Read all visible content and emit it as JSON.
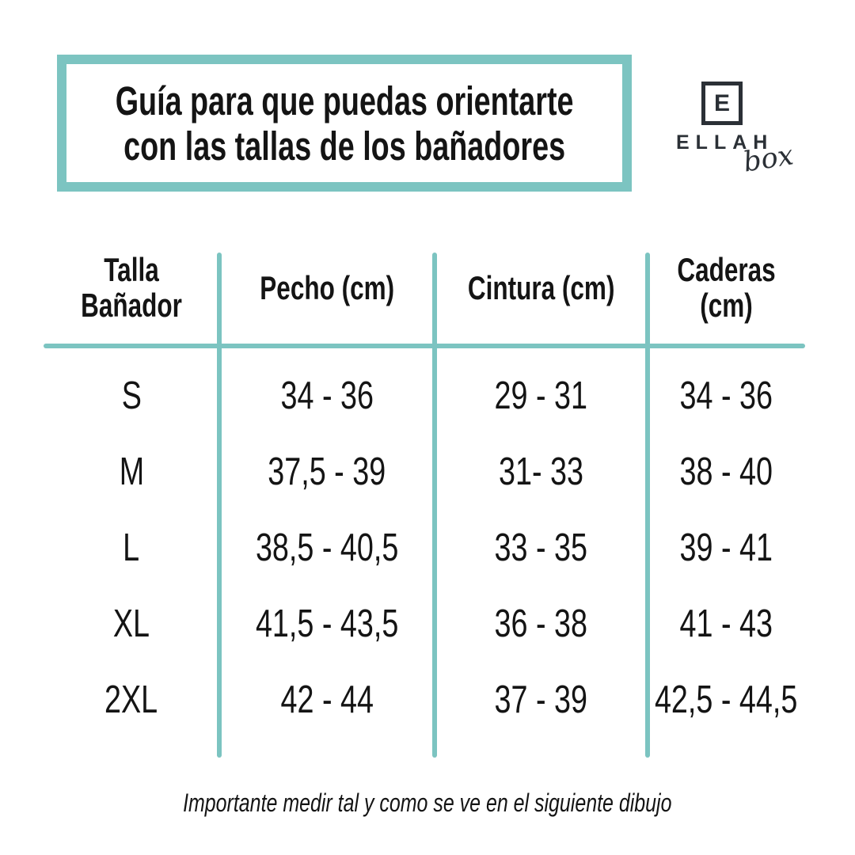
{
  "title": {
    "line1": "Guía para que puedas orientarte",
    "line2": "con las tallas de los bañadores"
  },
  "logo": {
    "monogram": "E",
    "name": "ELLAH",
    "suffix": "box"
  },
  "table": {
    "headers": [
      "Talla Bañador",
      "Pecho (cm)",
      "Cintura (cm)",
      "Caderas (cm)"
    ],
    "rows": [
      {
        "size": "S",
        "pecho": "34 - 36",
        "cintura": "29 - 31",
        "caderas": "34 - 36"
      },
      {
        "size": "M",
        "pecho": "37,5 - 39",
        "cintura": "31- 33",
        "caderas": "38 - 40"
      },
      {
        "size": "L",
        "pecho": "38,5 - 40,5",
        "cintura": "33 - 35",
        "caderas": "39 - 41"
      },
      {
        "size": "XL",
        "pecho": "41,5 - 43,5",
        "cintura": "36 - 38",
        "caderas": "41 - 43"
      },
      {
        "size": "2XL",
        "pecho": "42 - 44",
        "cintura": "37 - 39",
        "caderas": "42,5 - 44,5"
      }
    ]
  },
  "footer": {
    "note": "Importante medir tal y como se ve en el siguiente dibujo"
  },
  "colors": {
    "accent_teal": "#7cc4c1",
    "text": "#141414",
    "logo_dark": "#2b3036"
  }
}
